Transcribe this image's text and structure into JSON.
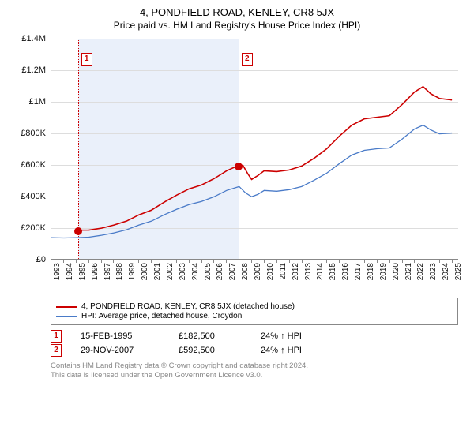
{
  "title": "4, PONDFIELD ROAD, KENLEY, CR8 5JX",
  "subtitle": "Price paid vs. HM Land Registry's House Price Index (HPI)",
  "chart": {
    "type": "line",
    "background_color": "#ffffff",
    "shade_color": "#eaf0fa",
    "grid_color": "#dddddd",
    "axis_color": "#888888",
    "ylabel_fontsize": 11,
    "xlabel_fontsize": 10,
    "xlim": [
      1993,
      2025.5
    ],
    "ylim": [
      0,
      1400000
    ],
    "yticks": [
      {
        "v": 0,
        "label": "£0"
      },
      {
        "v": 200000,
        "label": "£200K"
      },
      {
        "v": 400000,
        "label": "£400K"
      },
      {
        "v": 600000,
        "label": "£600K"
      },
      {
        "v": 800000,
        "label": "£800K"
      },
      {
        "v": 1000000,
        "label": "£1M"
      },
      {
        "v": 1200000,
        "label": "£1.2M"
      },
      {
        "v": 1400000,
        "label": "£1.4M"
      }
    ],
    "xticks": [
      1993,
      1994,
      1995,
      1996,
      1997,
      1998,
      1999,
      2000,
      2001,
      2002,
      2003,
      2004,
      2005,
      2006,
      2007,
      2008,
      2009,
      2010,
      2011,
      2012,
      2013,
      2014,
      2015,
      2016,
      2017,
      2018,
      2019,
      2020,
      2021,
      2022,
      2023,
      2024,
      2025
    ],
    "shade_range": [
      1995.12,
      2007.91
    ],
    "sale_markers": [
      {
        "n": "1",
        "x": 1995.12,
        "y": 182500
      },
      {
        "n": "2",
        "x": 2007.91,
        "y": 592500
      }
    ],
    "series": [
      {
        "name": "price_paid",
        "color": "#cc0000",
        "width": 1.6,
        "points": [
          [
            1995.12,
            182500
          ],
          [
            1996,
            183000
          ],
          [
            1997,
            195000
          ],
          [
            1998,
            215000
          ],
          [
            1999,
            240000
          ],
          [
            2000,
            280000
          ],
          [
            2001,
            310000
          ],
          [
            2002,
            360000
          ],
          [
            2003,
            405000
          ],
          [
            2004,
            445000
          ],
          [
            2005,
            470000
          ],
          [
            2006,
            510000
          ],
          [
            2007,
            560000
          ],
          [
            2007.91,
            592500
          ],
          [
            2008.3,
            595000
          ],
          [
            2008.7,
            540000
          ],
          [
            2009,
            505000
          ],
          [
            2009.5,
            530000
          ],
          [
            2010,
            560000
          ],
          [
            2011,
            555000
          ],
          [
            2012,
            565000
          ],
          [
            2013,
            590000
          ],
          [
            2014,
            640000
          ],
          [
            2015,
            700000
          ],
          [
            2016,
            780000
          ],
          [
            2017,
            850000
          ],
          [
            2018,
            890000
          ],
          [
            2019,
            900000
          ],
          [
            2020,
            910000
          ],
          [
            2021,
            980000
          ],
          [
            2022,
            1060000
          ],
          [
            2022.7,
            1095000
          ],
          [
            2023.3,
            1050000
          ],
          [
            2024,
            1020000
          ],
          [
            2025,
            1010000
          ]
        ]
      },
      {
        "name": "hpi",
        "color": "#4a7bc8",
        "width": 1.3,
        "points": [
          [
            1993,
            135000
          ],
          [
            1994,
            133000
          ],
          [
            1995,
            135000
          ],
          [
            1996,
            138000
          ],
          [
            1997,
            150000
          ],
          [
            1998,
            165000
          ],
          [
            1999,
            185000
          ],
          [
            2000,
            215000
          ],
          [
            2001,
            240000
          ],
          [
            2002,
            280000
          ],
          [
            2003,
            315000
          ],
          [
            2004,
            345000
          ],
          [
            2005,
            365000
          ],
          [
            2006,
            395000
          ],
          [
            2007,
            435000
          ],
          [
            2008,
            460000
          ],
          [
            2008.5,
            420000
          ],
          [
            2009,
            395000
          ],
          [
            2009.5,
            410000
          ],
          [
            2010,
            435000
          ],
          [
            2011,
            430000
          ],
          [
            2012,
            440000
          ],
          [
            2013,
            460000
          ],
          [
            2014,
            500000
          ],
          [
            2015,
            545000
          ],
          [
            2016,
            605000
          ],
          [
            2017,
            660000
          ],
          [
            2018,
            690000
          ],
          [
            2019,
            700000
          ],
          [
            2020,
            705000
          ],
          [
            2021,
            760000
          ],
          [
            2022,
            825000
          ],
          [
            2022.7,
            850000
          ],
          [
            2023.3,
            820000
          ],
          [
            2024,
            795000
          ],
          [
            2025,
            800000
          ]
        ]
      }
    ]
  },
  "legend": {
    "items": [
      {
        "color": "#cc0000",
        "label": "4, PONDFIELD ROAD, KENLEY, CR8 5JX (detached house)"
      },
      {
        "color": "#4a7bc8",
        "label": "HPI: Average price, detached house, Croydon"
      }
    ]
  },
  "sales": [
    {
      "n": "1",
      "date": "15-FEB-1995",
      "price": "£182,500",
      "delta": "24% ↑ HPI"
    },
    {
      "n": "2",
      "date": "29-NOV-2007",
      "price": "£592,500",
      "delta": "24% ↑ HPI"
    }
  ],
  "attribution": {
    "line1": "Contains HM Land Registry data © Crown copyright and database right 2024.",
    "line2": "This data is licensed under the Open Government Licence v3.0."
  }
}
